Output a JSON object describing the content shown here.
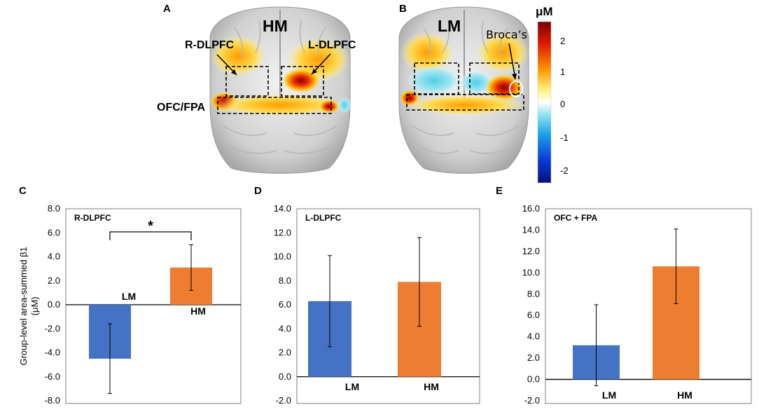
{
  "panels": {
    "A": {
      "label": "A",
      "condition": "HM",
      "regions": [
        "R-DLPFC",
        "L-DLPFC",
        "OFC/FPA"
      ]
    },
    "B": {
      "label": "B",
      "condition": "LM",
      "annotation": "Broca’s"
    }
  },
  "colorbar": {
    "unit": "μM",
    "ticks": [
      "2",
      "1",
      "0",
      "-1",
      "-2"
    ],
    "range": [
      -2.5,
      2.5
    ]
  },
  "colors": {
    "LM": "#4472c4",
    "HM": "#ed7d31"
  },
  "ylabel_line1": "Group-level area-summed β1",
  "ylabel_line2": "(μM)",
  "chart_data": [
    {
      "panel": "C",
      "type": "bar",
      "title": "R-DLPFC",
      "categories": [
        "LM",
        "HM"
      ],
      "values": [
        -4.5,
        3.1
      ],
      "errors": [
        2.9,
        1.9
      ],
      "ylim": [
        -8,
        8
      ],
      "ticks": [
        "8.0",
        "6.0",
        "4.0",
        "2.0",
        "0.0",
        "-2.0",
        "-4.0",
        "-6.0",
        "-8.0"
      ],
      "significance": "*"
    },
    {
      "panel": "D",
      "type": "bar",
      "title": "L-DLPFC",
      "categories": [
        "LM",
        "HM"
      ],
      "values": [
        6.3,
        7.9
      ],
      "errors": [
        3.8,
        3.7
      ],
      "ylim": [
        -2,
        14
      ],
      "ticks": [
        "14.0",
        "12.0",
        "10.0",
        "8.0",
        "6.0",
        "4.0",
        "2.0",
        "0.0",
        "-2.0"
      ]
    },
    {
      "panel": "E",
      "type": "bar",
      "title": "OFC + FPA",
      "categories": [
        "LM",
        "HM"
      ],
      "values": [
        3.2,
        10.6
      ],
      "errors": [
        3.8,
        3.5
      ],
      "ylim": [
        -2,
        16
      ],
      "ticks": [
        "16.0",
        "14.0",
        "12.0",
        "10.0",
        "8.0",
        "6.0",
        "4.0",
        "2.0",
        "0.0",
        "-2.0"
      ]
    }
  ]
}
